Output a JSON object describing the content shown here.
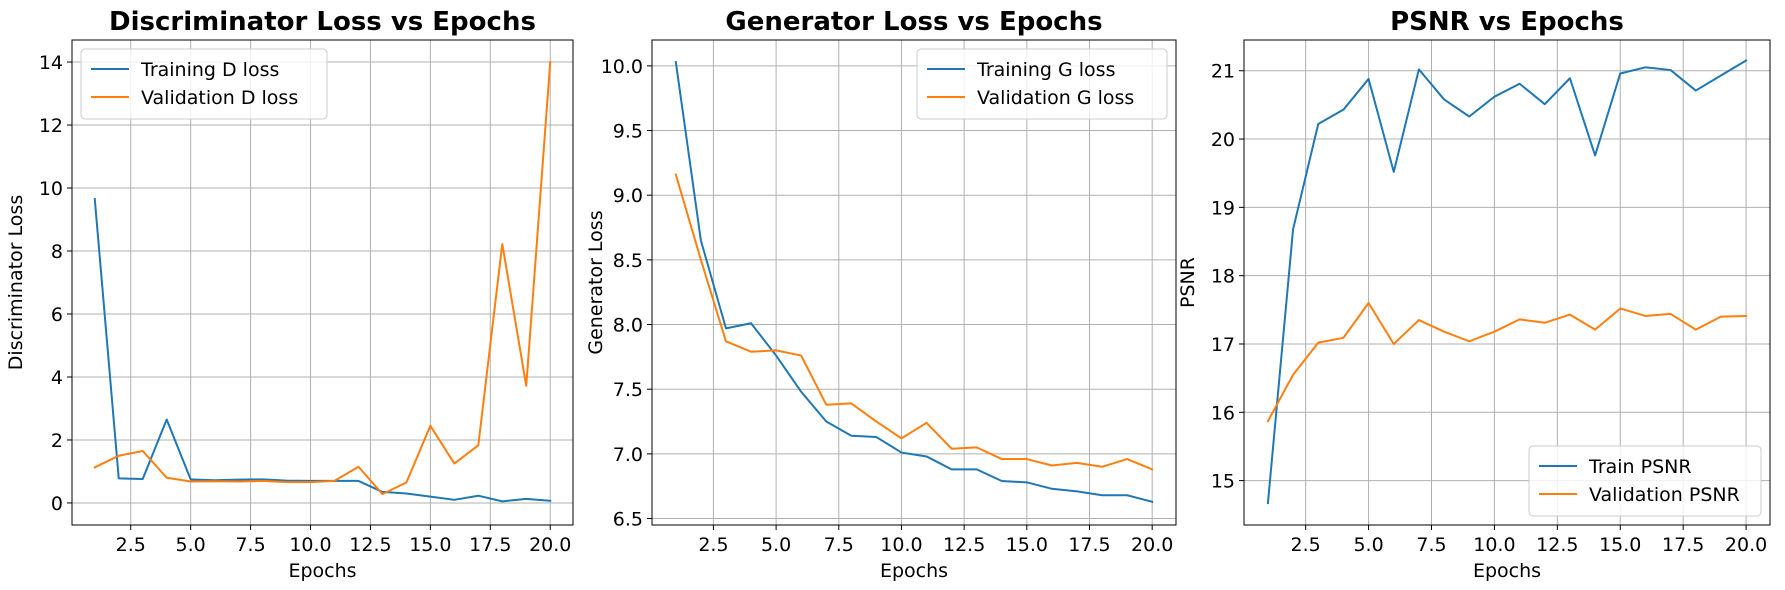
{
  "chart_data": [
    {
      "type": "line",
      "title": "Discriminator Loss vs Epochs",
      "xlabel": "Epochs",
      "ylabel": "Discriminator Loss",
      "xlim": [
        0.05,
        20.95
      ],
      "ylim": [
        -0.7,
        14.7
      ],
      "xticks": [
        2.5,
        5.0,
        7.5,
        10.0,
        12.5,
        15.0,
        17.5,
        20.0
      ],
      "xtick_labels": [
        "2.5",
        "5.0",
        "7.5",
        "10.0",
        "12.5",
        "15.0",
        "17.5",
        "20.0"
      ],
      "yticks": [
        0,
        2,
        4,
        6,
        8,
        10,
        12,
        14
      ],
      "ytick_labels": [
        "0",
        "2",
        "4",
        "6",
        "8",
        "10",
        "12",
        "14"
      ],
      "grid": true,
      "legend_position": "top-left",
      "x": [
        1,
        2,
        3,
        4,
        5,
        6,
        7,
        8,
        9,
        10,
        11,
        12,
        13,
        14,
        15,
        16,
        17,
        18,
        19,
        20
      ],
      "series": [
        {
          "name": "Training D loss",
          "color": "#1f77b4",
          "values": [
            9.65,
            0.78,
            0.76,
            2.65,
            0.75,
            0.72,
            0.74,
            0.75,
            0.71,
            0.7,
            0.7,
            0.7,
            0.35,
            0.3,
            0.2,
            0.1,
            0.23,
            0.05,
            0.13,
            0.07
          ]
        },
        {
          "name": "Validation D loss",
          "color": "#ff7f0e",
          "values": [
            1.13,
            1.5,
            1.65,
            0.8,
            0.68,
            0.69,
            0.68,
            0.7,
            0.66,
            0.66,
            0.7,
            1.15,
            0.28,
            0.65,
            2.45,
            1.25,
            1.83,
            8.22,
            3.72,
            14.0
          ]
        }
      ]
    },
    {
      "type": "line",
      "title": "Generator Loss vs Epochs",
      "xlabel": "Epochs",
      "ylabel": "Generator Loss",
      "xlim": [
        0.05,
        20.95
      ],
      "ylim": [
        6.45,
        10.2
      ],
      "xticks": [
        2.5,
        5.0,
        7.5,
        10.0,
        12.5,
        15.0,
        17.5,
        20.0
      ],
      "xtick_labels": [
        "2.5",
        "5.0",
        "7.5",
        "10.0",
        "12.5",
        "15.0",
        "17.5",
        "20.0"
      ],
      "yticks": [
        6.5,
        7.0,
        7.5,
        8.0,
        8.5,
        9.0,
        9.5,
        10.0
      ],
      "ytick_labels": [
        "6.5",
        "7.0",
        "7.5",
        "8.0",
        "8.5",
        "9.0",
        "9.5",
        "10.0"
      ],
      "grid": true,
      "legend_position": "top-right",
      "x": [
        1,
        2,
        3,
        4,
        5,
        6,
        7,
        8,
        9,
        10,
        11,
        12,
        13,
        14,
        15,
        16,
        17,
        18,
        19,
        20
      ],
      "series": [
        {
          "name": "Training G loss",
          "color": "#1f77b4",
          "values": [
            10.03,
            8.65,
            7.97,
            8.01,
            7.76,
            7.48,
            7.25,
            7.14,
            7.13,
            7.01,
            6.98,
            6.88,
            6.88,
            6.79,
            6.78,
            6.73,
            6.71,
            6.68,
            6.68,
            6.63
          ]
        },
        {
          "name": "Validation G loss",
          "color": "#ff7f0e",
          "values": [
            9.16,
            8.5,
            7.87,
            7.79,
            7.8,
            7.76,
            7.38,
            7.39,
            7.25,
            7.12,
            7.24,
            7.04,
            7.05,
            6.96,
            6.96,
            6.91,
            6.93,
            6.9,
            6.96,
            6.88
          ]
        }
      ]
    },
    {
      "type": "line",
      "title": "PSNR vs Epochs",
      "xlabel": "Epochs",
      "ylabel": "PSNR",
      "xlim": [
        0.05,
        20.95
      ],
      "ylim": [
        14.35,
        21.45
      ],
      "xticks": [
        2.5,
        5.0,
        7.5,
        10.0,
        12.5,
        15.0,
        17.5,
        20.0
      ],
      "xtick_labels": [
        "2.5",
        "5.0",
        "7.5",
        "10.0",
        "12.5",
        "15.0",
        "17.5",
        "20.0"
      ],
      "yticks": [
        15,
        16,
        17,
        18,
        19,
        20,
        21
      ],
      "ytick_labels": [
        "15",
        "16",
        "17",
        "18",
        "19",
        "20",
        "21"
      ],
      "grid": true,
      "legend_position": "bottom-right",
      "x": [
        1,
        2,
        3,
        4,
        5,
        6,
        7,
        8,
        9,
        10,
        11,
        12,
        13,
        14,
        15,
        16,
        17,
        18,
        19,
        20
      ],
      "series": [
        {
          "name": "Train PSNR",
          "color": "#1f77b4",
          "values": [
            14.67,
            18.68,
            20.22,
            20.43,
            20.88,
            19.52,
            21.02,
            20.58,
            20.33,
            20.62,
            20.81,
            20.51,
            20.89,
            19.76,
            20.96,
            21.05,
            21.01,
            20.71,
            20.93,
            21.15
          ]
        },
        {
          "name": "Validation PSNR",
          "color": "#ff7f0e",
          "values": [
            15.87,
            16.55,
            17.02,
            17.09,
            17.6,
            17.0,
            17.35,
            17.18,
            17.04,
            17.18,
            17.36,
            17.31,
            17.43,
            17.21,
            17.52,
            17.41,
            17.44,
            17.21,
            17.4,
            17.41
          ]
        }
      ]
    }
  ]
}
